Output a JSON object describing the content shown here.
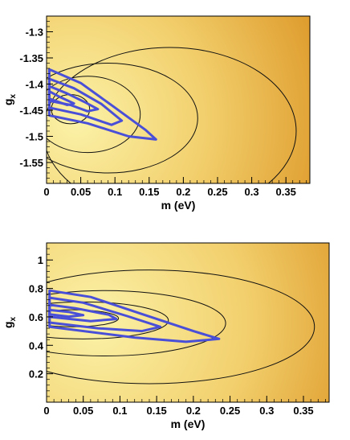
{
  "chart_data": [
    {
      "type": "heatmap",
      "xlabel": "m (eV)",
      "ylabel": "g",
      "ylabel_sub": "x",
      "xlim": [
        0,
        0.385
      ],
      "ylim": [
        -1.59,
        -1.27
      ],
      "xticks": [
        "0",
        "0.05",
        "0.1",
        "0.15",
        "0.2",
        "0.25",
        "0.3",
        "0.35"
      ],
      "xtick_values": [
        0,
        0.05,
        0.1,
        0.15,
        0.2,
        0.25,
        0.3,
        0.35
      ],
      "yticks": [
        "-1.3",
        "-1.35",
        "-1.4",
        "-1.45",
        "-1.5",
        "-1.55"
      ],
      "ytick_values": [
        -1.3,
        -1.35,
        -1.4,
        -1.45,
        -1.5,
        -1.55
      ],
      "colormap": [
        "#fbf2a8",
        "#f2cf6c",
        "#d98e1c"
      ],
      "black_contours": [
        {
          "center": [
            0.035,
            -1.448
          ],
          "xmax": 0.063,
          "half_height": 0.028
        },
        {
          "center": [
            0.06,
            -1.458
          ],
          "xmax": 0.137,
          "half_height": 0.073
        },
        {
          "center": [
            0.09,
            -1.465
          ],
          "xmax": 0.221,
          "half_height": 0.105
        },
        {
          "center": [
            0.18,
            -1.49
          ],
          "xmax": 0.365,
          "half_height": 0.16
        }
      ],
      "blue_contours": [
        [
          [
            0.004,
            -1.372
          ],
          [
            0.05,
            -1.398
          ],
          [
            0.1,
            -1.445
          ],
          [
            0.145,
            -1.488
          ],
          [
            0.16,
            -1.506
          ],
          [
            0.12,
            -1.5
          ],
          [
            0.06,
            -1.475
          ],
          [
            0.004,
            -1.46
          ]
        ],
        [
          [
            0.004,
            -1.39
          ],
          [
            0.04,
            -1.408
          ],
          [
            0.08,
            -1.438
          ],
          [
            0.11,
            -1.47
          ],
          [
            0.095,
            -1.478
          ],
          [
            0.05,
            -1.458
          ],
          [
            0.004,
            -1.445
          ]
        ],
        [
          [
            0.004,
            -1.404
          ],
          [
            0.03,
            -1.418
          ],
          [
            0.055,
            -1.434
          ],
          [
            0.075,
            -1.448
          ],
          [
            0.06,
            -1.452
          ],
          [
            0.035,
            -1.44
          ],
          [
            0.004,
            -1.432
          ]
        ],
        [
          [
            0.004,
            -1.414
          ],
          [
            0.02,
            -1.425
          ],
          [
            0.04,
            -1.437
          ],
          [
            0.03,
            -1.44
          ],
          [
            0.004,
            -1.428
          ]
        ]
      ]
    },
    {
      "type": "heatmap",
      "xlabel": "m (eV)",
      "ylabel": "g",
      "ylabel_sub": "x",
      "xlim": [
        0,
        0.385
      ],
      "ylim": [
        0,
        1.12
      ],
      "xticks": [
        "0",
        "0.05",
        "0.1",
        "0.15",
        "0.2",
        "0.25",
        "0.3",
        "0.35"
      ],
      "xtick_values": [
        0,
        0.05,
        0.1,
        0.15,
        0.2,
        0.25,
        0.3,
        0.35
      ],
      "yticks": [
        "1",
        "0.8",
        "0.6",
        "0.4",
        "0.2"
      ],
      "ytick_values": [
        1,
        0.8,
        0.6,
        0.4,
        0.2
      ],
      "colormap": [
        "#fbf2a8",
        "#f2cf6c",
        "#d98e1c"
      ],
      "black_contours": [
        {
          "center": [
            0.035,
            0.59
          ],
          "xmax": 0.098,
          "half_height": 0.06
        },
        {
          "center": [
            0.05,
            0.575
          ],
          "xmax": 0.166,
          "half_height": 0.13
        },
        {
          "center": [
            0.08,
            0.555
          ],
          "xmax": 0.244,
          "half_height": 0.23
        },
        {
          "center": [
            0.14,
            0.53
          ],
          "xmax": 0.365,
          "half_height": 0.4
        }
      ],
      "blue_contours": [
        [
          [
            0.004,
            0.785
          ],
          [
            0.06,
            0.74
          ],
          [
            0.13,
            0.62
          ],
          [
            0.2,
            0.5
          ],
          [
            0.235,
            0.445
          ],
          [
            0.19,
            0.425
          ],
          [
            0.12,
            0.455
          ],
          [
            0.004,
            0.53
          ]
        ],
        [
          [
            0.004,
            0.735
          ],
          [
            0.05,
            0.7
          ],
          [
            0.11,
            0.605
          ],
          [
            0.155,
            0.53
          ],
          [
            0.13,
            0.5
          ],
          [
            0.07,
            0.52
          ],
          [
            0.004,
            0.56
          ]
        ],
        [
          [
            0.004,
            0.685
          ],
          [
            0.04,
            0.66
          ],
          [
            0.085,
            0.615
          ],
          [
            0.095,
            0.585
          ],
          [
            0.06,
            0.57
          ],
          [
            0.004,
            0.6
          ]
        ],
        [
          [
            0.004,
            0.648
          ],
          [
            0.03,
            0.635
          ],
          [
            0.05,
            0.612
          ],
          [
            0.03,
            0.602
          ],
          [
            0.004,
            0.618
          ]
        ]
      ]
    }
  ]
}
